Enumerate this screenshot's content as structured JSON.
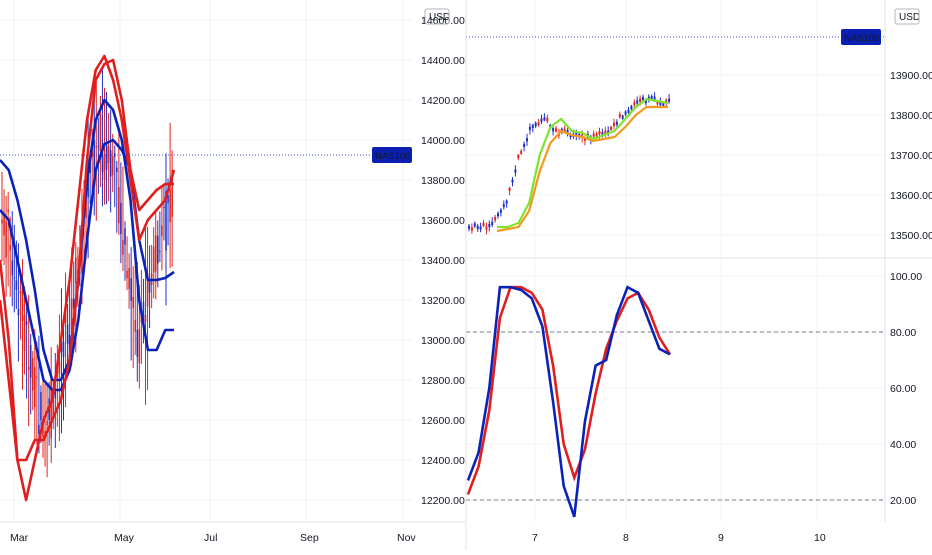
{
  "left_chart": {
    "symbol_badge": "NAS100",
    "currency": "USD",
    "y_ticks": [
      "14600.00",
      "14400.00",
      "14200.00",
      "14000.00",
      "13800.00",
      "13600.00",
      "13400.00",
      "13200.00",
      "13000.00",
      "12800.00",
      "12600.00",
      "12400.00",
      "12200.00"
    ],
    "x_ticks": [
      "Mar",
      "May",
      "Jul",
      "Sep",
      "Nov"
    ],
    "colors": {
      "bands": "#e01e1e",
      "channel": "#0b22b8",
      "candles_up": "#1f31c9",
      "candles_down": "#e0261f",
      "badge": "#0b1fb0"
    }
  },
  "right_top": {
    "symbol_badge": "NAS100",
    "currency": "USD",
    "y_ticks": [
      "13900.00",
      "13800.00",
      "13700.00",
      "13600.00",
      "13500.00"
    ],
    "colors": {
      "fast_ma": "#7ee32a",
      "slow_ma": "#f39a1e",
      "candles_up": "#1f31c9",
      "candles_down": "#e0261f"
    }
  },
  "right_bottom": {
    "y_ticks": [
      "100.00",
      "80.00",
      "60.00",
      "40.00",
      "20.00"
    ],
    "x_ticks": [
      "7",
      "8",
      "9",
      "10"
    ],
    "levels": [
      80,
      20
    ],
    "colors": {
      "k": "#0b22b8",
      "d": "#e01e1e"
    }
  },
  "chart_data": [
    {
      "type": "line",
      "title": "",
      "x_ticks": [
        "Mar",
        "May",
        "Jul",
        "Sep",
        "Nov"
      ],
      "ylim": [
        12100,
        14600
      ],
      "series": [
        {
          "values": [
            13650,
            13600,
            13400,
            13200,
            13000,
            12800,
            12750,
            12750,
            12850,
            13100,
            13500,
            13850,
            13980,
            14000,
            13950,
            13850,
            13500,
            13300,
            13300,
            13310,
            13340
          ]
        },
        {
          "values": [
            13900,
            13850,
            13700,
            13500,
            13250,
            12950,
            12800,
            12800,
            12900,
            13300,
            13800,
            14100,
            14200,
            14150,
            14000,
            13700,
            13200,
            12950,
            12950,
            13050,
            13050
          ]
        },
        {
          "values": [
            13400,
            13000,
            12400,
            12400,
            12500,
            12500,
            12600,
            12700,
            12900,
            13300,
            13900,
            14300,
            14380,
            14400,
            14200,
            13850,
            13650,
            13700,
            13750,
            13780,
            13780
          ]
        },
        {
          "values": [
            13200,
            12800,
            12400,
            12200,
            12400,
            12600,
            12700,
            13000,
            13300,
            13700,
            14100,
            14350,
            14420,
            14300,
            14100,
            13800,
            13500,
            13600,
            13650,
            13700,
            13850
          ]
        }
      ]
    },
    {
      "type": "line",
      "title": "",
      "x_ticks": [
        "7",
        "8",
        "9",
        "10"
      ],
      "ylim": [
        13460,
        13900
      ],
      "series": [
        {
          "values": [
            13520,
            13520,
            13530,
            13580,
            13700,
            13770,
            13790,
            13760,
            13755,
            13740,
            13750,
            13760,
            13790,
            13820,
            13840,
            13835,
            13830
          ]
        },
        {
          "values": [
            13510,
            13515,
            13520,
            13560,
            13660,
            13730,
            13760,
            13750,
            13745,
            13735,
            13740,
            13745,
            13770,
            13800,
            13820,
            13820,
            13820
          ]
        }
      ]
    },
    {
      "type": "line",
      "title": "",
      "x_ticks": [
        "7",
        "8",
        "9",
        "10"
      ],
      "ylim": [
        14,
        104
      ],
      "series": [
        {
          "values": [
            27,
            37,
            60,
            96,
            96,
            95,
            92,
            82,
            55,
            25,
            14,
            48,
            68,
            70,
            86,
            96,
            94,
            84,
            74,
            72
          ]
        },
        {
          "values": [
            22,
            32,
            52,
            85,
            96,
            96,
            94,
            88,
            68,
            40,
            28,
            38,
            58,
            74,
            84,
            92,
            94,
            88,
            78,
            72
          ]
        }
      ]
    }
  ]
}
